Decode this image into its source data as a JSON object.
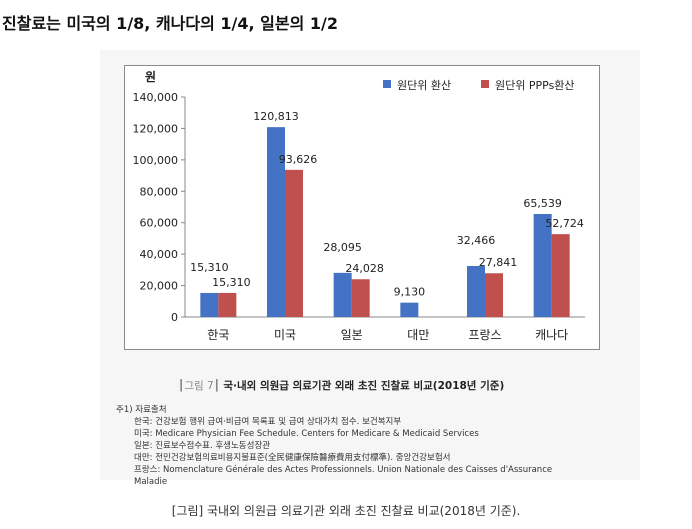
{
  "headline": "진찰료는 미국의 1/8, 캐나다의 1/4, 일본의 1/2",
  "figure": {
    "title_marker": "┃그림 7┃",
    "title_text": "국·내외 의원급 의료기관 외래 초진 진찰료 비교(2018년 기준)",
    "notes": [
      "주1) 자료출처",
      "한국: 건강보험 행위 급여·비급여 목록표 및 급여 상대가치 점수. 보건복지부",
      "미국: Medicare Physician Fee Schedule. Centers for Medicare & Medicaid Services",
      "일본: 진료보수점수표. 후생노동성장관",
      "대만: 전민건강보험의료비용지불표준(全民健康保險醫療費用支付標準). 중앙건강보험서",
      "프랑스: Nomenclature Générale des Actes Professionnels. Union Nationale des Caisses d'Assurance",
      "Maladie"
    ]
  },
  "caption": "[그림] 국내외 의원급 의료기관 외래 초진 진찰료 비교(2018년 기준).",
  "chart_data": {
    "type": "bar",
    "ylabel": "원",
    "ylim": [
      0,
      140000
    ],
    "yticks": [
      "0",
      "20,000",
      "40,000",
      "60,000",
      "80,000",
      "100,000",
      "120,000",
      "140,000"
    ],
    "grid": false,
    "legend_position": "top-right",
    "categories": [
      "한국",
      "미국",
      "일본",
      "대만",
      "프랑스",
      "캐나다"
    ],
    "series": [
      {
        "name": "원단위 환산",
        "color": "#4472c4",
        "values": [
          15310,
          120813,
          28095,
          9130,
          32466,
          65539
        ],
        "labels": [
          "15,310",
          "120,813",
          "28,095",
          "9,130",
          "32,466",
          "65,539"
        ]
      },
      {
        "name": "원단위 PPPs환산",
        "color": "#c0504d",
        "values": [
          15310,
          93626,
          24028,
          null,
          27841,
          52724
        ],
        "labels": [
          "15,310",
          "93,626",
          "24,028",
          "",
          "27,841",
          "52,724"
        ]
      }
    ]
  }
}
